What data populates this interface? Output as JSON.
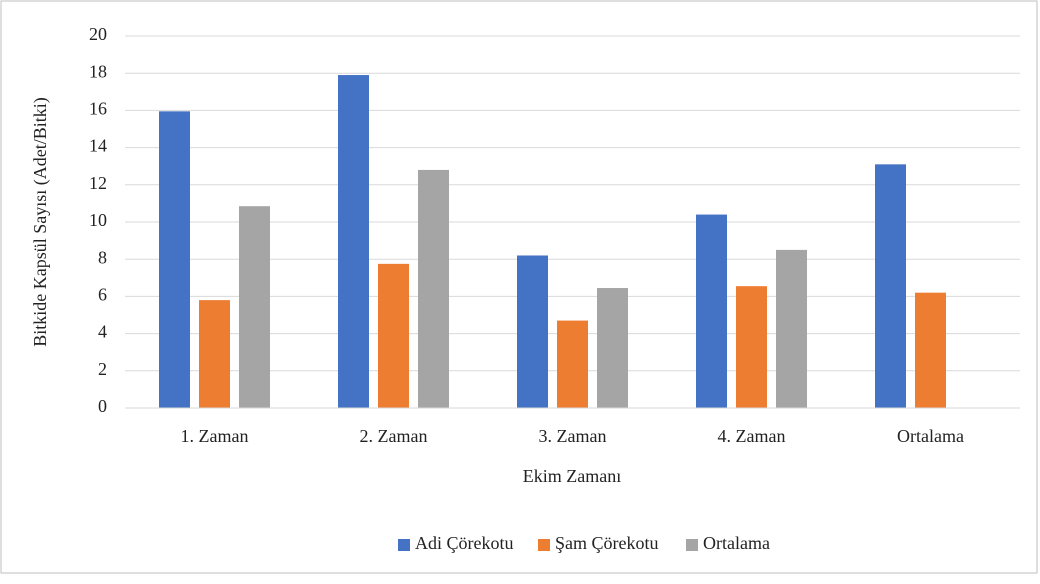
{
  "chart_data": {
    "type": "bar",
    "xlabel": "Ekim Zamanı",
    "ylabel": "Bitkide Kapsül Sayısı (Adet/Bitki)",
    "categories": [
      "1. Zaman",
      "2. Zaman",
      "3. Zaman",
      "4. Zaman",
      "Ortalama"
    ],
    "series": [
      {
        "name": "Adi Çörekotu",
        "color": "#4472c4",
        "values": [
          15.95,
          17.9,
          8.2,
          10.4,
          13.1
        ]
      },
      {
        "name": "Şam Çörekotu",
        "color": "#ed7d31",
        "values": [
          5.8,
          7.75,
          4.7,
          6.55,
          6.2
        ]
      },
      {
        "name": "Ortalama",
        "color": "#a5a5a5",
        "values": [
          10.85,
          12.8,
          6.45,
          8.5,
          null
        ]
      }
    ],
    "ylim": [
      0,
      20
    ],
    "yticks": [
      0,
      2,
      4,
      6,
      8,
      10,
      12,
      14,
      16,
      18,
      20
    ],
    "grid": true,
    "legend": "bottom"
  }
}
